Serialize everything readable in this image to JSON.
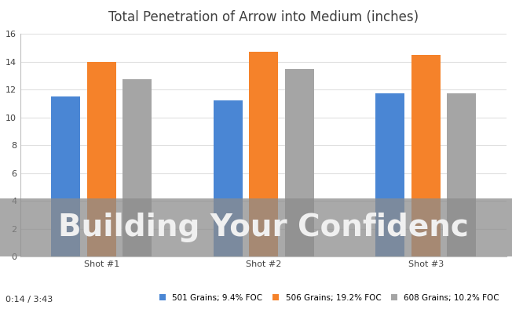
{
  "chart_data": {
    "type": "bar",
    "title": "Total Penetration of Arrow into Medium (inches)",
    "categories": [
      "Shot #1",
      "Shot #2",
      "Shot #3"
    ],
    "series": [
      {
        "name": "501 Grains; 9.4% FOC",
        "color": "#4a86d4",
        "values": [
          11.5,
          11.25,
          11.75
        ]
      },
      {
        "name": "506 Grains; 19.2% FOC",
        "color": "#f5822a",
        "values": [
          14.0,
          14.75,
          14.5
        ]
      },
      {
        "name": "608 Grains; 10.2% FOC",
        "color": "#a5a5a5",
        "values": [
          12.75,
          13.5,
          11.75
        ]
      }
    ],
    "ylim": [
      0,
      16
    ],
    "yticks": [
      0,
      2,
      4,
      6,
      8,
      10,
      12,
      14,
      16
    ],
    "grid": true,
    "legend": "bottom",
    "annotations": [
      "Building Your Confidenc",
      "0:14 / 3:43"
    ]
  }
}
